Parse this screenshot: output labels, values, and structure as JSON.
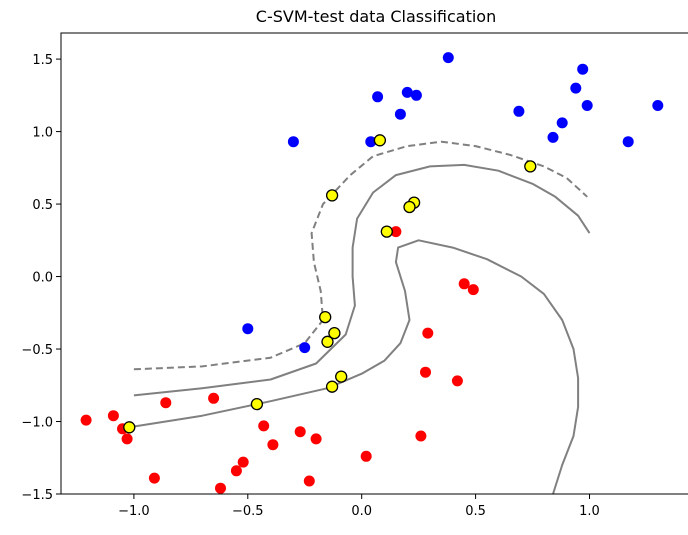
{
  "chart_data": {
    "type": "scatter",
    "title": "C-SVM-test data Classification",
    "xlabel": "",
    "ylabel": "",
    "xlim": [
      -1.32,
      1.45
    ],
    "ylim": [
      -1.5,
      1.68
    ],
    "xticks": [
      -1.0,
      -0.5,
      0.0,
      0.5,
      1.0
    ],
    "xtick_labels": [
      "−1.0",
      "−0.5",
      "0.0",
      "0.5",
      "1.0"
    ],
    "yticks": [
      -1.5,
      -1.0,
      -0.5,
      0.0,
      0.5,
      1.0,
      1.5
    ],
    "ytick_labels": [
      "−1.5",
      "−1.0",
      "−0.5",
      "0.0",
      "0.5",
      "1.0",
      "1.5"
    ],
    "grid": false,
    "series": [
      {
        "color": "#0000ff",
        "points": [
          [
            0.38,
            1.51
          ],
          [
            0.97,
            1.43
          ],
          [
            0.94,
            1.3
          ],
          [
            0.99,
            1.18
          ],
          [
            1.3,
            1.18
          ],
          [
            0.69,
            1.14
          ],
          [
            0.2,
            1.27
          ],
          [
            0.24,
            1.25
          ],
          [
            0.07,
            1.24
          ],
          [
            0.17,
            1.12
          ],
          [
            0.88,
            1.06
          ],
          [
            0.84,
            0.96
          ],
          [
            1.17,
            0.93
          ],
          [
            0.04,
            0.93
          ],
          [
            -0.3,
            0.93
          ],
          [
            -0.5,
            -0.36
          ],
          [
            -0.25,
            -0.49
          ]
        ]
      },
      {
        "color": "#ff0000",
        "points": [
          [
            0.15,
            0.31
          ],
          [
            0.45,
            -0.05
          ],
          [
            0.49,
            -0.09
          ],
          [
            0.29,
            -0.39
          ],
          [
            0.42,
            -0.72
          ],
          [
            0.28,
            -0.66
          ],
          [
            -0.65,
            -0.84
          ],
          [
            -0.86,
            -0.87
          ],
          [
            -1.21,
            -0.99
          ],
          [
            -1.09,
            -0.96
          ],
          [
            -1.05,
            -1.05
          ],
          [
            -1.03,
            -1.12
          ],
          [
            -0.43,
            -1.03
          ],
          [
            -0.39,
            -1.16
          ],
          [
            -0.27,
            -1.07
          ],
          [
            -0.2,
            -1.12
          ],
          [
            0.26,
            -1.1
          ],
          [
            0.02,
            -1.24
          ],
          [
            -0.52,
            -1.28
          ],
          [
            -0.55,
            -1.34
          ],
          [
            -0.91,
            -1.39
          ],
          [
            -0.23,
            -1.41
          ],
          [
            -0.62,
            -1.46
          ]
        ]
      },
      {
        "color": "#ffff00",
        "edge_color": "#000000",
        "points": [
          [
            0.08,
            0.94
          ],
          [
            0.74,
            0.76
          ],
          [
            -0.13,
            0.56
          ],
          [
            0.23,
            0.51
          ],
          [
            0.21,
            0.48
          ],
          [
            0.11,
            0.31
          ],
          [
            -0.16,
            -0.28
          ],
          [
            -0.12,
            -0.39
          ],
          [
            -0.15,
            -0.45
          ],
          [
            -0.09,
            -0.69
          ],
          [
            -0.13,
            -0.76
          ],
          [
            -0.46,
            -0.88
          ],
          [
            -1.02,
            -1.04
          ]
        ]
      }
    ],
    "curves": [
      {
        "style": "dashed",
        "color": "#808080",
        "points": [
          [
            -1.0,
            -0.64
          ],
          [
            -0.7,
            -0.62
          ],
          [
            -0.4,
            -0.56
          ],
          [
            -0.25,
            -0.46
          ],
          [
            -0.17,
            -0.3
          ],
          [
            -0.18,
            -0.1
          ],
          [
            -0.21,
            0.1
          ],
          [
            -0.22,
            0.3
          ],
          [
            -0.17,
            0.5
          ],
          [
            -0.05,
            0.7
          ],
          [
            0.05,
            0.83
          ],
          [
            0.2,
            0.9
          ],
          [
            0.35,
            0.93
          ],
          [
            0.5,
            0.9
          ],
          [
            0.65,
            0.84
          ],
          [
            0.8,
            0.76
          ],
          [
            0.9,
            0.68
          ],
          [
            0.99,
            0.55
          ]
        ]
      },
      {
        "style": "solid",
        "color": "#808080",
        "points": [
          [
            -1.0,
            -0.82
          ],
          [
            -0.7,
            -0.77
          ],
          [
            -0.4,
            -0.71
          ],
          [
            -0.2,
            -0.6
          ],
          [
            -0.07,
            -0.4
          ],
          [
            -0.03,
            -0.2
          ],
          [
            -0.04,
            0.0
          ],
          [
            -0.04,
            0.2
          ],
          [
            -0.02,
            0.4
          ],
          [
            0.05,
            0.58
          ],
          [
            0.15,
            0.7
          ],
          [
            0.3,
            0.76
          ],
          [
            0.45,
            0.77
          ],
          [
            0.6,
            0.73
          ],
          [
            0.75,
            0.64
          ],
          [
            0.85,
            0.55
          ],
          [
            0.95,
            0.42
          ],
          [
            1.0,
            0.3
          ]
        ]
      },
      {
        "style": "solid",
        "color": "#808080",
        "points": [
          [
            -1.02,
            -1.04
          ],
          [
            -0.7,
            -0.96
          ],
          [
            -0.4,
            -0.86
          ],
          [
            -0.15,
            -0.77
          ],
          [
            0.0,
            -0.67
          ],
          [
            0.1,
            -0.58
          ],
          [
            0.17,
            -0.46
          ],
          [
            0.21,
            -0.3
          ],
          [
            0.19,
            -0.1
          ],
          [
            0.15,
            0.1
          ],
          [
            0.16,
            0.2
          ],
          [
            0.25,
            0.25
          ],
          [
            0.4,
            0.2
          ],
          [
            0.55,
            0.12
          ],
          [
            0.7,
            0.0
          ],
          [
            0.8,
            -0.12
          ],
          [
            0.88,
            -0.3
          ],
          [
            0.93,
            -0.5
          ],
          [
            0.95,
            -0.7
          ],
          [
            0.95,
            -0.9
          ],
          [
            0.93,
            -1.1
          ],
          [
            0.88,
            -1.3
          ],
          [
            0.84,
            -1.5
          ]
        ]
      }
    ]
  }
}
